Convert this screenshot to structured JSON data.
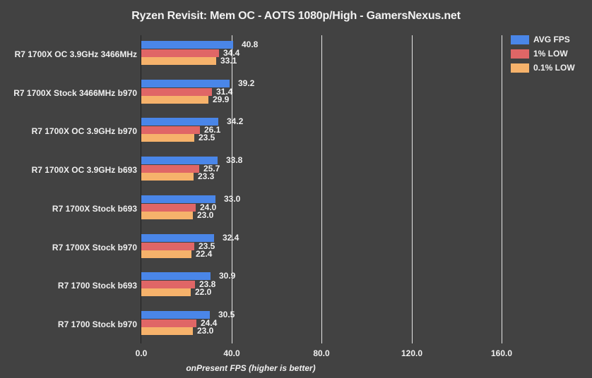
{
  "chart_data": {
    "type": "bar",
    "orientation": "horizontal",
    "title": "Ryzen Revisit: Mem OC - AOTS 1080p/High - GamersNexus.net",
    "xlabel": "onPresent FPS (higher is better)",
    "ylabel": "",
    "xlim": [
      0,
      190
    ],
    "xticks": [
      "0.0",
      "40.0",
      "80.0",
      "120.0",
      "160.0"
    ],
    "grid": true,
    "legend_position": "top-right",
    "categories": [
      "R7 1700X OC 3.9GHz 3466MHz",
      "R7 1700X Stock 3466MHz b970",
      "R7 1700X OC 3.9GHz b970",
      "R7 1700X OC 3.9GHz b693",
      "R7 1700X Stock b693",
      "R7 1700X Stock b970",
      "R7 1700 Stock b693",
      "R7 1700 Stock b970"
    ],
    "series": [
      {
        "name": "AVG FPS",
        "color": "#4a86e8",
        "values": [
          40.8,
          39.2,
          34.2,
          33.8,
          33.0,
          32.4,
          30.9,
          30.5
        ]
      },
      {
        "name": "1% LOW",
        "color": "#e06666",
        "values": [
          34.4,
          31.4,
          26.1,
          25.7,
          24.0,
          23.5,
          23.8,
          24.4
        ]
      },
      {
        "name": "0.1% LOW",
        "color": "#f6b26b",
        "values": [
          33.1,
          29.9,
          23.5,
          23.3,
          23.0,
          22.4,
          22.0,
          23.0
        ]
      }
    ],
    "value_labels": [
      [
        "40.8",
        "34.4",
        "33.1"
      ],
      [
        "39.2",
        "31.4",
        "29.9"
      ],
      [
        "34.2",
        "26.1",
        "23.5"
      ],
      [
        "33.8",
        "25.7",
        "23.3"
      ],
      [
        "33.0",
        "24.0",
        "23.0"
      ],
      [
        "32.4",
        "23.5",
        "22.4"
      ],
      [
        "30.9",
        "23.8",
        "22.0"
      ],
      [
        "30.5",
        "24.4",
        "23.0"
      ]
    ]
  }
}
